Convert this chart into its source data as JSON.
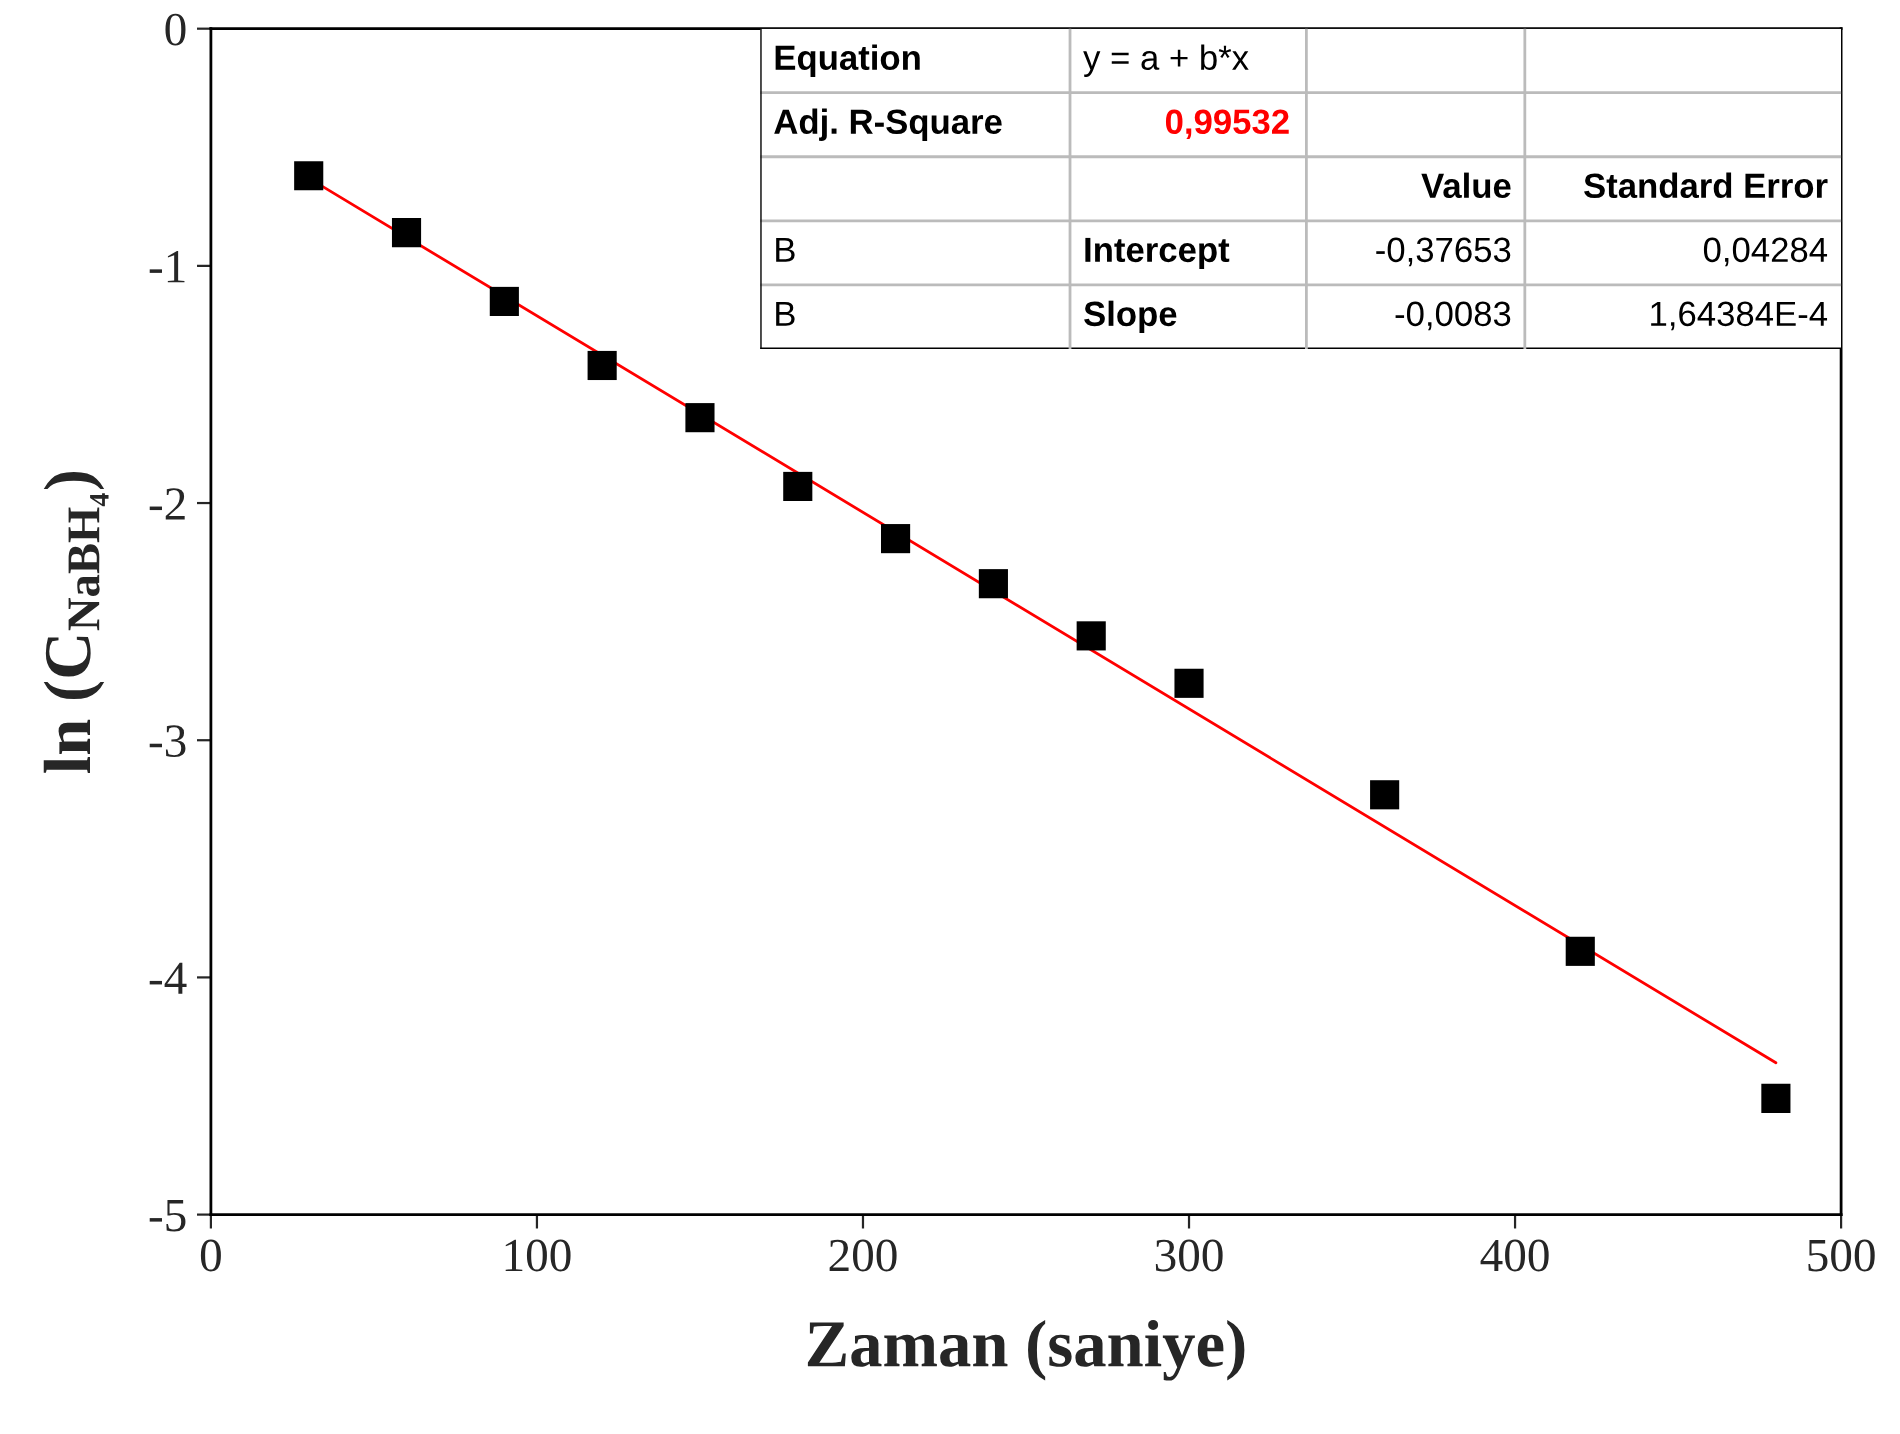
{
  "chart_data": {
    "type": "scatter",
    "xlabel": "Zaman (saniye)",
    "ylabel": "ln (C$_{NaBH₄}$)",
    "xlim": [
      0,
      500
    ],
    "xticks": [
      0,
      100,
      200,
      300,
      400,
      500
    ],
    "ylim": [
      -5,
      0
    ],
    "yticks": [
      -5,
      -4,
      -3,
      -2,
      -1,
      0
    ],
    "grid": false,
    "legend": false,
    "marker": "square",
    "series": [
      {
        "type": "scatter",
        "color": "#000000",
        "x": [
          30,
          60,
          90,
          120,
          150,
          180,
          210,
          240,
          270,
          300,
          360,
          420,
          480
        ],
        "values": [
          -0.62,
          -0.86,
          -1.15,
          -1.42,
          -1.64,
          -1.93,
          -2.15,
          -2.34,
          -2.56,
          -2.76,
          -3.23,
          -3.89,
          -4.51
        ]
      },
      {
        "type": "line",
        "color": "#ff0000",
        "marker": "none",
        "line_style": "solid",
        "x": [
          30,
          480
        ],
        "values": [
          -0.63,
          -4.36
        ]
      }
    ],
    "annotations": [
      "Equation",
      "y = a + b*x",
      "Adj. R-Square",
      "0,99532",
      "Value",
      "Standard Error",
      "B",
      "Intercept",
      "-0,37653",
      "0,04284",
      "B",
      "Slope",
      "-0,0083",
      "1,64384E-4"
    ]
  }
}
